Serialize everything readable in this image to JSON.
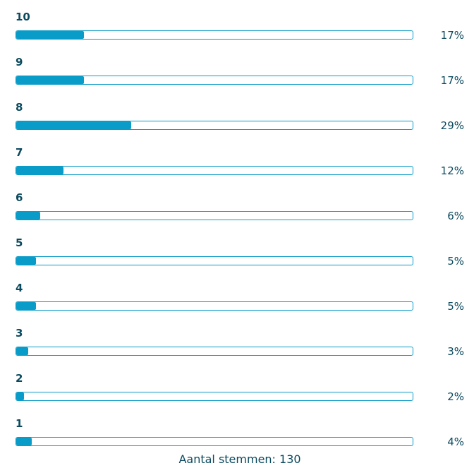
{
  "chart_data": {
    "type": "bar",
    "orientation": "horizontal",
    "categories": [
      "10",
      "9",
      "8",
      "7",
      "6",
      "5",
      "4",
      "3",
      "2",
      "1"
    ],
    "values": [
      17,
      17,
      29,
      12,
      6,
      5,
      5,
      3,
      2,
      4
    ],
    "value_labels": [
      "17%",
      "17%",
      "29%",
      "12%",
      "6%",
      "5%",
      "5%",
      "3%",
      "2%",
      "4%"
    ],
    "unit": "%",
    "xlim": [
      0,
      100
    ],
    "bar_color": "#0a9cc8",
    "title": "",
    "xlabel": "",
    "ylabel": ""
  },
  "footer": {
    "total_votes": "Aantal stemmen: 130"
  }
}
